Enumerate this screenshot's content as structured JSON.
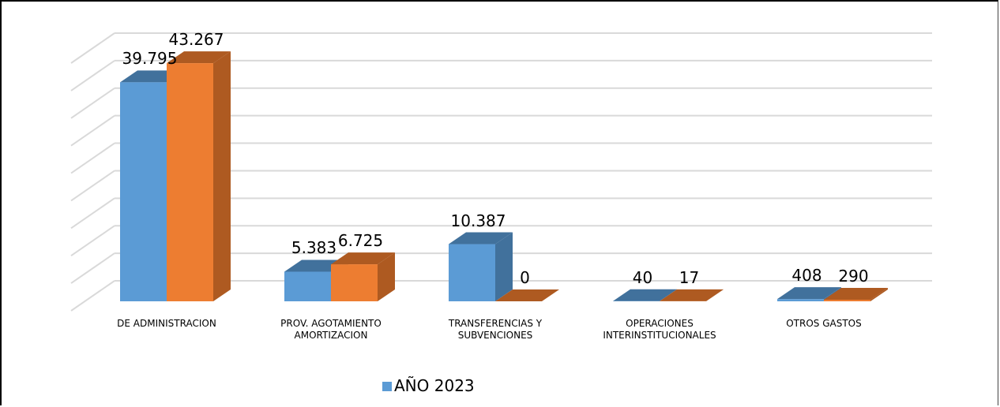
{
  "chart_data": {
    "type": "bar3d",
    "categories": [
      "DE ADMINISTRACION",
      "PROV. AGOTAMIENTO\nAMORTIZACION",
      "TRANSFERENCIAS Y\nSUBVENCIONES",
      "OPERACIONES\nINTERINSTITUCIONALES",
      "OTROS GASTOS"
    ],
    "series": [
      {
        "name": "AÑO 2023",
        "color": "#5b9bd5",
        "side": "#41719c",
        "values": [
          39795,
          5383,
          10387,
          40,
          408
        ],
        "value_labels": [
          "39.795",
          "5.383",
          "10.387",
          "40",
          "408"
        ]
      },
      {
        "color": "#ed7d31",
        "side": "#ae5a21",
        "values": [
          43267,
          6725,
          0,
          17,
          290
        ],
        "value_labels": [
          "43.267",
          "6.725",
          "0",
          "17",
          "290"
        ]
      }
    ],
    "ylim": [
      0,
      45000
    ],
    "yticks": [
      0,
      5000,
      10000,
      15000,
      20000,
      25000,
      30000,
      35000,
      40000,
      45000
    ],
    "grid": true
  }
}
